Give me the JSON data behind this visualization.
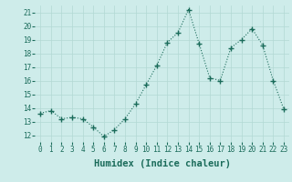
{
  "x": [
    0,
    1,
    2,
    3,
    4,
    5,
    6,
    7,
    8,
    9,
    10,
    11,
    12,
    13,
    14,
    15,
    16,
    17,
    18,
    19,
    20,
    21,
    22,
    23
  ],
  "y": [
    13.6,
    13.8,
    13.2,
    13.3,
    13.2,
    12.6,
    11.9,
    12.4,
    13.2,
    14.3,
    15.7,
    17.1,
    18.8,
    19.5,
    21.2,
    18.7,
    16.2,
    16.0,
    18.4,
    19.0,
    19.8,
    18.6,
    16.0,
    13.9
  ],
  "line_color": "#1a6b5a",
  "marker": "+",
  "marker_size": 4.0,
  "linewidth": 0.8,
  "background_color": "#ceecea",
  "grid_color": "#b2d8d4",
  "xlabel": "Humidex (Indice chaleur)",
  "ylim": [
    11.5,
    21.5
  ],
  "yticks": [
    12,
    13,
    14,
    15,
    16,
    17,
    18,
    19,
    20,
    21
  ],
  "xticks": [
    0,
    1,
    2,
    3,
    4,
    5,
    6,
    7,
    8,
    9,
    10,
    11,
    12,
    13,
    14,
    15,
    16,
    17,
    18,
    19,
    20,
    21,
    22,
    23
  ],
  "tick_fontsize": 5.5,
  "xlabel_fontsize": 7.5
}
